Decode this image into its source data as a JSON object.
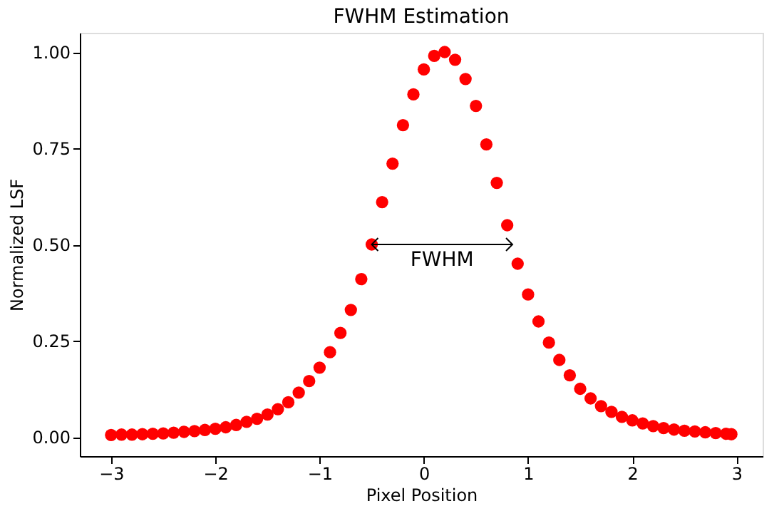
{
  "chart_data": {
    "type": "scatter",
    "title": "FWHM Estimation",
    "xlabel": "Pixel Position",
    "ylabel": "Normalized LSF",
    "x": [
      -3.0,
      -2.9,
      -2.8,
      -2.7,
      -2.6,
      -2.5,
      -2.4,
      -2.3,
      -2.2,
      -2.1,
      -2.0,
      -1.9,
      -1.8,
      -1.7,
      -1.6,
      -1.5,
      -1.4,
      -1.3,
      -1.2,
      -1.1,
      -1.0,
      -0.9,
      -0.8,
      -0.7,
      -0.6,
      -0.5,
      -0.4,
      -0.3,
      -0.2,
      -0.1,
      0.0,
      0.1,
      0.2,
      0.3,
      0.4,
      0.5,
      0.6,
      0.7,
      0.8,
      0.9,
      1.0,
      1.1,
      1.2,
      1.3,
      1.4,
      1.5,
      1.6,
      1.7,
      1.8,
      1.9,
      2.0,
      2.1,
      2.2,
      2.3,
      2.4,
      2.5,
      2.6,
      2.7,
      2.8,
      2.9,
      2.95
    ],
    "series": [
      {
        "color": "#ff0000",
        "values": [
          0.005,
          0.006,
          0.006,
          0.007,
          0.008,
          0.009,
          0.011,
          0.013,
          0.015,
          0.018,
          0.021,
          0.025,
          0.031,
          0.039,
          0.047,
          0.058,
          0.072,
          0.09,
          0.115,
          0.145,
          0.18,
          0.22,
          0.27,
          0.33,
          0.41,
          0.5,
          0.61,
          0.71,
          0.81,
          0.89,
          0.955,
          0.99,
          1.0,
          0.98,
          0.93,
          0.86,
          0.76,
          0.66,
          0.55,
          0.45,
          0.37,
          0.3,
          0.245,
          0.2,
          0.16,
          0.125,
          0.1,
          0.08,
          0.065,
          0.052,
          0.043,
          0.035,
          0.028,
          0.023,
          0.019,
          0.016,
          0.014,
          0.012,
          0.01,
          0.008,
          0.007
        ]
      }
    ],
    "marker": "circle",
    "xlim": [
      -3.3,
      3.25
    ],
    "xticks": [
      -3,
      -2,
      -1,
      0,
      1,
      2,
      3
    ],
    "ylim": [
      -0.05,
      1.05
    ],
    "yticks": [
      {
        "value": 0,
        "label": "0.00"
      },
      {
        "value": 0.25,
        "label": "0.25"
      },
      {
        "value": 0.5,
        "label": "0.50"
      },
      {
        "value": 0.75,
        "label": "0.75"
      },
      {
        "value": 1,
        "label": "1.00"
      }
    ],
    "annotations": [
      "FWHM"
    ],
    "grid": false
  }
}
